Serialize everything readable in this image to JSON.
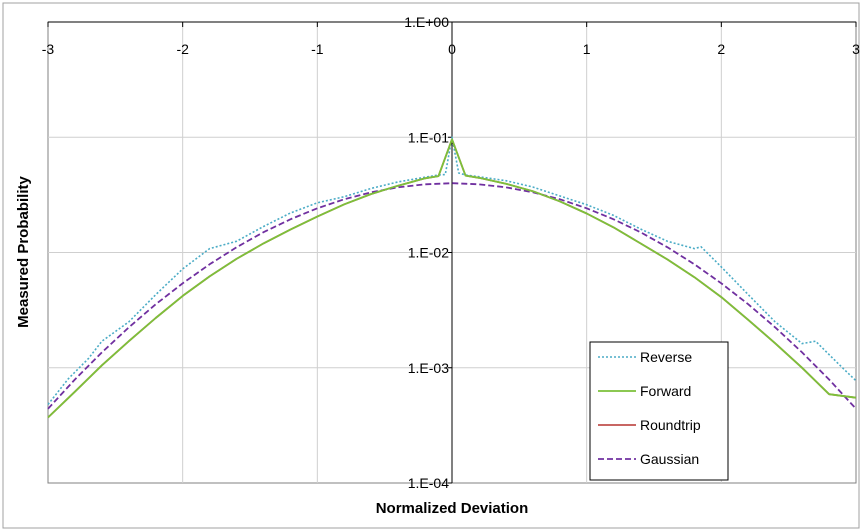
{
  "chart_data": {
    "type": "line",
    "title": "",
    "xlabel": "Normalized Deviation",
    "ylabel": "Measured Probability",
    "xlim": [
      -3,
      3
    ],
    "ylim": [
      0.0001,
      1
    ],
    "yscale": "log",
    "grid": true,
    "legend_position": "bottom-right",
    "x_ticks": [
      "-3",
      "-2",
      "-1",
      "0",
      "1",
      "2",
      "3"
    ],
    "y_ticks": [
      "1.E-04",
      "1.E-03",
      "1.E-02",
      "1.E-01",
      "1.E+00"
    ],
    "series": [
      {
        "name": "Reverse",
        "color": "#4bacc6",
        "style": "dotted",
        "x": [
          -3,
          -2.85,
          -2.7,
          -2.6,
          -2.4,
          -2.2,
          -2.0,
          -1.8,
          -1.75,
          -1.6,
          -1.4,
          -1.2,
          -1.0,
          -0.8,
          -0.6,
          -0.4,
          -0.2,
          -0.1,
          -0.05,
          0,
          0.05,
          0.1,
          0.2,
          0.4,
          0.6,
          0.8,
          1.0,
          1.2,
          1.4,
          1.6,
          1.8,
          1.85,
          2.0,
          2.2,
          2.4,
          2.6,
          2.7,
          2.8,
          2.9,
          3.0
        ],
        "y": [
          0.00048,
          0.0008,
          0.0012,
          0.0017,
          0.0025,
          0.0043,
          0.0072,
          0.0108,
          0.0112,
          0.0125,
          0.0168,
          0.022,
          0.027,
          0.0305,
          0.036,
          0.041,
          0.045,
          0.047,
          0.0475,
          0.1,
          0.049,
          0.047,
          0.0455,
          0.042,
          0.037,
          0.031,
          0.026,
          0.021,
          0.016,
          0.0125,
          0.0108,
          0.0112,
          0.0075,
          0.0043,
          0.0025,
          0.00162,
          0.0017,
          0.0013,
          0.001,
          0.00077
        ]
      },
      {
        "name": "Forward",
        "color": "#7cc13a",
        "style": "solid",
        "x": [
          -3.0,
          -2.8,
          -2.6,
          -2.4,
          -2.2,
          -2.0,
          -1.8,
          -1.6,
          -1.4,
          -1.2,
          -1.0,
          -0.8,
          -0.6,
          -0.4,
          -0.2,
          -0.1,
          0,
          0.1,
          0.2,
          0.4,
          0.6,
          0.8,
          1.0,
          1.2,
          1.4,
          1.6,
          1.8,
          2.0,
          2.2,
          2.4,
          2.6,
          2.8,
          3.0
        ],
        "y": [
          0.00037,
          0.00062,
          0.00105,
          0.0017,
          0.0027,
          0.0042,
          0.0062,
          0.0088,
          0.012,
          0.0158,
          0.0205,
          0.0262,
          0.0322,
          0.038,
          0.044,
          0.046,
          0.096,
          0.0465,
          0.0445,
          0.0395,
          0.034,
          0.0278,
          0.0218,
          0.0165,
          0.012,
          0.0087,
          0.0061,
          0.0041,
          0.0026,
          0.00163,
          0.001,
          0.00059,
          0.00055
        ]
      },
      {
        "name": "Roundtrip",
        "color": "#c0504d",
        "style": "solid",
        "x": [
          -3.0,
          -2.8,
          -2.6,
          -2.4,
          -2.2,
          -2.0,
          -1.8,
          -1.6,
          -1.4,
          -1.2,
          -1.0,
          -0.8,
          -0.6,
          -0.4,
          -0.2,
          -0.1,
          0,
          0.1,
          0.2,
          0.4,
          0.6,
          0.8,
          1.0,
          1.2,
          1.4,
          1.6,
          1.8,
          2.0,
          2.2,
          2.4,
          2.6,
          2.8,
          3.0
        ],
        "y": [
          0.00037,
          0.00062,
          0.00105,
          0.0017,
          0.0027,
          0.0042,
          0.0062,
          0.0088,
          0.012,
          0.0158,
          0.0205,
          0.0262,
          0.0322,
          0.038,
          0.044,
          0.046,
          0.096,
          0.0465,
          0.0445,
          0.0395,
          0.034,
          0.0278,
          0.0218,
          0.0165,
          0.012,
          0.0087,
          0.0061,
          0.0041,
          0.0026,
          0.00163,
          0.001,
          0.00059,
          0.00055
        ]
      },
      {
        "name": "Gaussian",
        "color": "#7030a0",
        "style": "dashed",
        "x": [
          -3.0,
          -2.8,
          -2.6,
          -2.4,
          -2.2,
          -2.0,
          -1.8,
          -1.6,
          -1.4,
          -1.2,
          -1.0,
          -0.8,
          -0.6,
          -0.4,
          -0.2,
          0,
          0.2,
          0.4,
          0.6,
          0.8,
          1.0,
          1.2,
          1.4,
          1.6,
          1.8,
          2.0,
          2.2,
          2.4,
          2.6,
          2.8,
          3.0
        ],
        "y": [
          0.00044,
          0.00079,
          0.00136,
          0.00224,
          0.00355,
          0.0054,
          0.0079,
          0.0111,
          0.015,
          0.0194,
          0.0242,
          0.029,
          0.0333,
          0.0368,
          0.0391,
          0.0399,
          0.0391,
          0.0368,
          0.0333,
          0.029,
          0.0242,
          0.0194,
          0.015,
          0.0111,
          0.0079,
          0.0054,
          0.00355,
          0.00224,
          0.00136,
          0.00079,
          0.00044
        ]
      }
    ]
  }
}
